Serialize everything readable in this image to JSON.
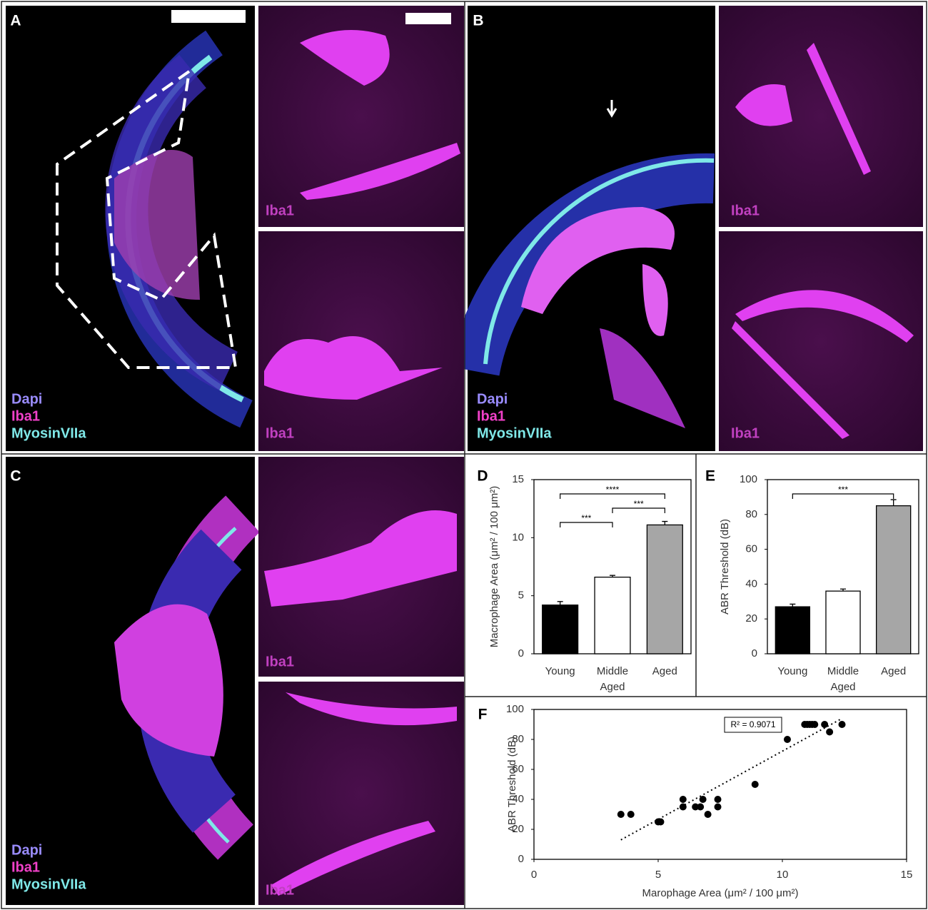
{
  "panels": [
    {
      "letter": "A",
      "labels": [
        "Dapi",
        "Iba1",
        "MyosinVIIa"
      ],
      "insets": [
        "Iba1",
        "Iba1"
      ]
    },
    {
      "letter": "B",
      "labels": [
        "Dapi",
        "Iba1",
        "MyosinVIIa"
      ],
      "insets": [
        "Iba1",
        "Iba1"
      ]
    },
    {
      "letter": "C",
      "labels": [
        "Dapi",
        "Iba1",
        "MyosinVIIa"
      ],
      "insets": [
        "Iba1",
        "Iba1"
      ]
    }
  ],
  "chart_data": [
    {
      "type": "bar",
      "panel": "D",
      "y_label": "Macrophage Area (μm² / 100 μm²)",
      "categories": [
        "Young",
        "Middle Aged",
        "Aged"
      ],
      "values": [
        4.2,
        6.6,
        11.1
      ],
      "errors": [
        0.3,
        0.15,
        0.3
      ],
      "colors": [
        "#000000",
        "#ffffff",
        "#a6a6a6"
      ],
      "ylim": [
        0,
        15
      ],
      "yticks": [
        0,
        5,
        10,
        15
      ],
      "brackets": [
        {
          "label": "****",
          "from": "Young",
          "to": "Aged"
        },
        {
          "label": "***",
          "from": "Middle Aged",
          "to": "Aged"
        },
        {
          "label": "***",
          "from": "Young",
          "to": "Middle Aged"
        }
      ]
    },
    {
      "type": "bar",
      "panel": "E",
      "y_label": "ABR Threshold  (dB)",
      "categories": [
        "Young",
        "Middle Aged",
        "Aged"
      ],
      "values": [
        27,
        36,
        85
      ],
      "errors": [
        1.5,
        1.2,
        3.5
      ],
      "colors": [
        "#000000",
        "#ffffff",
        "#a6a6a6"
      ],
      "ylim": [
        0,
        100
      ],
      "yticks": [
        0,
        20,
        40,
        60,
        80,
        100
      ],
      "brackets": [
        {
          "label": "***",
          "from": "Young",
          "to": "Aged"
        }
      ]
    },
    {
      "type": "scatter",
      "panel": "F",
      "x_label": "Marophage Area (μm² / 100 μm²)",
      "y_label": "ABR Threshold (dB)",
      "x": [
        3.5,
        3.9,
        5.0,
        5.1,
        6.0,
        6.0,
        6.5,
        6.7,
        6.8,
        7.0,
        7.4,
        7.4,
        8.9,
        10.2,
        10.9,
        11.0,
        11.1,
        11.2,
        11.3,
        11.7,
        11.9,
        12.4
      ],
      "values": [
        30,
        30,
        25,
        25,
        35,
        40,
        35,
        35,
        40,
        30,
        40,
        35,
        50,
        80,
        90,
        90,
        90,
        90,
        90,
        90,
        85,
        90
      ],
      "color": "#000000",
      "trendline": {
        "x": [
          3.5,
          12.4
        ],
        "values": [
          13,
          94
        ]
      },
      "annotation": "R² = 0.9071",
      "xlim": [
        0,
        15
      ],
      "xticks": [
        0,
        5,
        10,
        15
      ],
      "ylim": [
        0,
        100
      ],
      "yticks": [
        0,
        20,
        40,
        60,
        80,
        100
      ]
    }
  ]
}
